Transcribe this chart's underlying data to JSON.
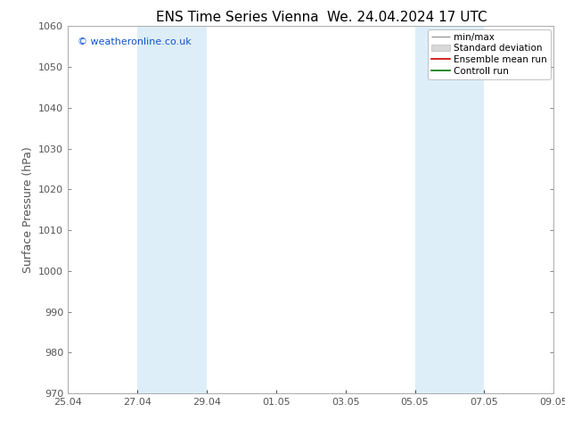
{
  "title_left": "ENS Time Series Vienna",
  "title_right": "We. 24.04.2024 17 UTC",
  "ylabel": "Surface Pressure (hPa)",
  "ylim": [
    970,
    1060
  ],
  "yticks": [
    970,
    980,
    990,
    1000,
    1010,
    1020,
    1030,
    1040,
    1050,
    1060
  ],
  "xtick_labels": [
    "25.04",
    "27.04",
    "29.04",
    "01.05",
    "03.05",
    "05.05",
    "07.05",
    "09.05"
  ],
  "xtick_positions": [
    0,
    2,
    4,
    6,
    8,
    10,
    12,
    14
  ],
  "shaded_bands": [
    {
      "x_start": 2,
      "x_end": 4
    },
    {
      "x_start": 10,
      "x_end": 12
    }
  ],
  "shade_color": "#ddeef8",
  "watermark": "© weatheronline.co.uk",
  "watermark_color": "#1155cc",
  "legend_labels": [
    "min/max",
    "Standard deviation",
    "Ensemble mean run",
    "Controll run"
  ],
  "legend_colors": [
    "#999999",
    "#cccccc",
    "#cc0000",
    "#007700"
  ],
  "bg_color": "#ffffff",
  "spine_color": "#aaaaaa",
  "tick_color": "#555555",
  "title_fontsize": 11,
  "tick_fontsize": 8,
  "label_fontsize": 9,
  "legend_fontsize": 7.5
}
